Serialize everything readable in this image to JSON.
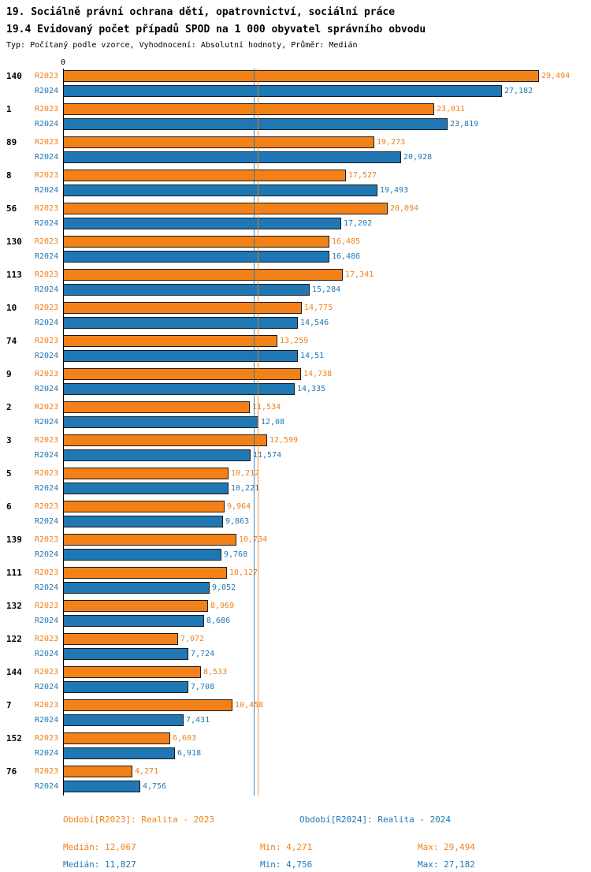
{
  "header": {
    "title": "19. Sociálně právní ochrana dětí, opatrovnictví, sociální práce",
    "subtitle": "19.4 Evidovaný počet případů SPOD na 1 000 obyvatel správního obvodu",
    "meta": "Typ: Počítaný podle vzorce, Vyhodnocení: Absolutní hodnoty, Průměr: Medián"
  },
  "axis": {
    "zero_label": "0"
  },
  "colors": {
    "r2023": "#F28118",
    "r2024": "#1F77B4"
  },
  "chart_data": {
    "type": "bar",
    "orientation": "horizontal",
    "series_labels": [
      "R2023",
      "R2024"
    ],
    "xlim": [
      0,
      29.494
    ],
    "grid": false,
    "medians": {
      "r2023": 12.067,
      "r2024": 11.827
    },
    "groups": [
      {
        "category": "140",
        "r2023": {
          "value": 29.494,
          "label": "29,494"
        },
        "r2024": {
          "value": 27.182,
          "label": "27,182"
        }
      },
      {
        "category": "1",
        "r2023": {
          "value": 23.011,
          "label": "23,011"
        },
        "r2024": {
          "value": 23.819,
          "label": "23,819"
        }
      },
      {
        "category": "89",
        "r2023": {
          "value": 19.273,
          "label": "19,273"
        },
        "r2024": {
          "value": 20.928,
          "label": "20,928"
        }
      },
      {
        "category": "8",
        "r2023": {
          "value": 17.527,
          "label": "17,527"
        },
        "r2024": {
          "value": 19.493,
          "label": "19,493"
        }
      },
      {
        "category": "56",
        "r2023": {
          "value": 20.094,
          "label": "20,094"
        },
        "r2024": {
          "value": 17.202,
          "label": "17,202"
        }
      },
      {
        "category": "130",
        "r2023": {
          "value": 16.485,
          "label": "16,485"
        },
        "r2024": {
          "value": 16.486,
          "label": "16,486"
        }
      },
      {
        "category": "113",
        "r2023": {
          "value": 17.341,
          "label": "17,341"
        },
        "r2024": {
          "value": 15.284,
          "label": "15,284"
        }
      },
      {
        "category": "10",
        "r2023": {
          "value": 14.775,
          "label": "14,775"
        },
        "r2024": {
          "value": 14.546,
          "label": "14,546"
        }
      },
      {
        "category": "74",
        "r2023": {
          "value": 13.259,
          "label": "13,259"
        },
        "r2024": {
          "value": 14.51,
          "label": "14,51"
        }
      },
      {
        "category": "9",
        "r2023": {
          "value": 14.738,
          "label": "14,738"
        },
        "r2024": {
          "value": 14.335,
          "label": "14,335"
        }
      },
      {
        "category": "2",
        "r2023": {
          "value": 11.534,
          "label": "11,534"
        },
        "r2024": {
          "value": 12.08,
          "label": "12,08"
        }
      },
      {
        "category": "3",
        "r2023": {
          "value": 12.599,
          "label": "12,599"
        },
        "r2024": {
          "value": 11.574,
          "label": "11,574"
        }
      },
      {
        "category": "5",
        "r2023": {
          "value": 10.212,
          "label": "10,212"
        },
        "r2024": {
          "value": 10.221,
          "label": "10,221"
        }
      },
      {
        "category": "6",
        "r2023": {
          "value": 9.964,
          "label": "9,964"
        },
        "r2024": {
          "value": 9.863,
          "label": "9,863"
        }
      },
      {
        "category": "139",
        "r2023": {
          "value": 10.734,
          "label": "10,734"
        },
        "r2024": {
          "value": 9.768,
          "label": "9,768"
        }
      },
      {
        "category": "111",
        "r2023": {
          "value": 10.127,
          "label": "10,127"
        },
        "r2024": {
          "value": 9.052,
          "label": "9,052"
        }
      },
      {
        "category": "132",
        "r2023": {
          "value": 8.969,
          "label": "8,969"
        },
        "r2024": {
          "value": 8.686,
          "label": "8,686"
        }
      },
      {
        "category": "122",
        "r2023": {
          "value": 7.072,
          "label": "7,072"
        },
        "r2024": {
          "value": 7.724,
          "label": "7,724"
        }
      },
      {
        "category": "144",
        "r2023": {
          "value": 8.533,
          "label": "8,533"
        },
        "r2024": {
          "value": 7.708,
          "label": "7,708"
        }
      },
      {
        "category": "7",
        "r2023": {
          "value": 10.458,
          "label": "10,458"
        },
        "r2024": {
          "value": 7.431,
          "label": "7,431"
        }
      },
      {
        "category": "152",
        "r2023": {
          "value": 6.603,
          "label": "6,603"
        },
        "r2024": {
          "value": 6.918,
          "label": "6,918"
        }
      },
      {
        "category": "76",
        "r2023": {
          "value": 4.271,
          "label": "4,271"
        },
        "r2024": {
          "value": 4.756,
          "label": "4,756"
        }
      }
    ]
  },
  "legend": {
    "r2023": "Období[R2023]: Realita - 2023",
    "r2024": "Období[R2024]: Realita - 2024"
  },
  "stats": {
    "labels": {
      "median": "Medián:",
      "min": "Min:",
      "max": "Max:"
    },
    "r2023": {
      "median": "12,067",
      "min": "4,271",
      "max": "29,494"
    },
    "r2024": {
      "median": "11,827",
      "min": "4,756",
      "max": "27,182"
    }
  }
}
